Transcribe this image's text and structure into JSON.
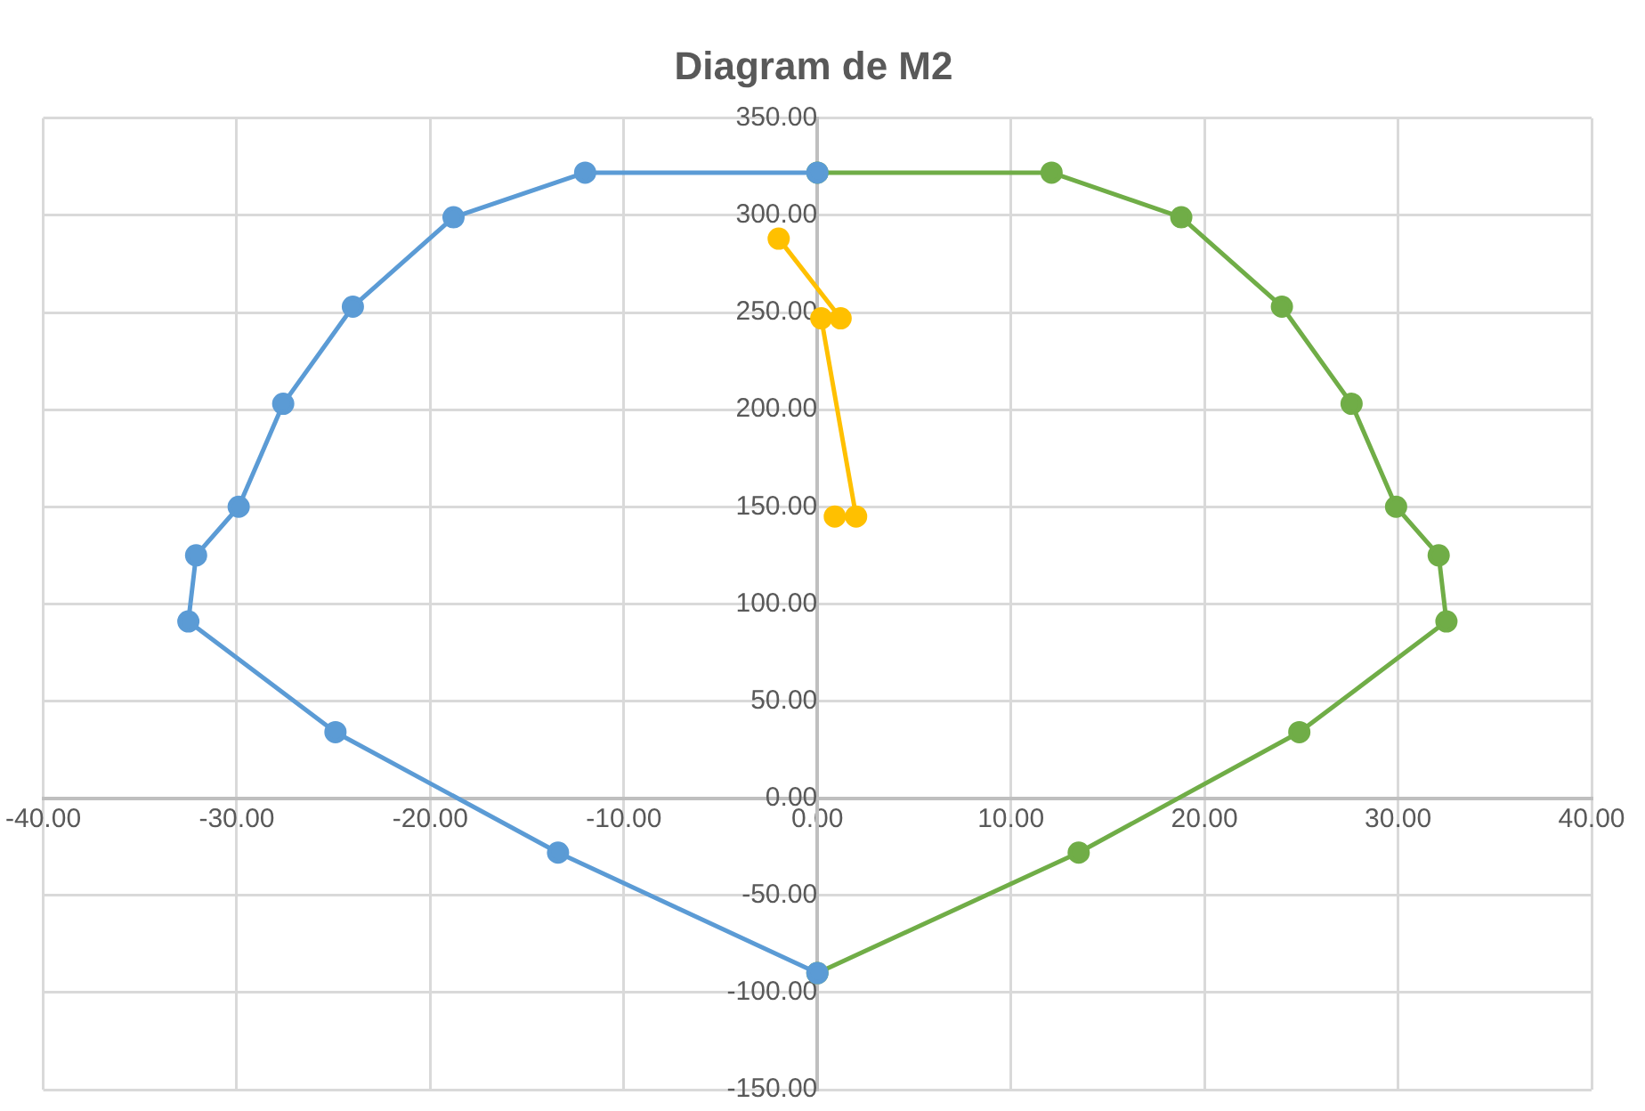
{
  "chart_data": {
    "type": "line",
    "title": "Diagram de M2",
    "xlim": [
      -40,
      40
    ],
    "xticks": [
      {
        "value": -40,
        "label": "-40.00"
      },
      {
        "value": -30,
        "label": "-30.00"
      },
      {
        "value": -20,
        "label": "-20.00"
      },
      {
        "value": -10,
        "label": "-10.00"
      },
      {
        "value": 0,
        "label": "0.00"
      },
      {
        "value": 10,
        "label": "10.00"
      },
      {
        "value": 20,
        "label": "20.00"
      },
      {
        "value": 30,
        "label": "30.00"
      },
      {
        "value": 40,
        "label": "40.00"
      }
    ],
    "ylim": [
      -150,
      350
    ],
    "yticks": [
      {
        "value": -150,
        "label": "-150.00"
      },
      {
        "value": -100,
        "label": "-100.00"
      },
      {
        "value": -50,
        "label": "-50.00"
      },
      {
        "value": 0,
        "label": "0.00"
      },
      {
        "value": 50,
        "label": "50.00"
      },
      {
        "value": 100,
        "label": "100.00"
      },
      {
        "value": 150,
        "label": "150.00"
      },
      {
        "value": 200,
        "label": "200.00"
      },
      {
        "value": 250,
        "label": "250.00"
      },
      {
        "value": 300,
        "label": "300.00"
      },
      {
        "value": 350,
        "label": "350.00"
      }
    ],
    "grid": true,
    "legend": false,
    "marker": "circle",
    "line_style": "solid",
    "series": [
      {
        "color": "#5b9bd5",
        "x": [
          0,
          -13.4,
          -24.9,
          -32.5,
          -32.1,
          -29.9,
          -27.6,
          -24,
          -18.8,
          -12,
          0
        ],
        "values": [
          -90,
          -28,
          34,
          91,
          125,
          150,
          203,
          253,
          299,
          322,
          322
        ]
      },
      {
        "color": "#70ad47",
        "x": [
          0,
          13.5,
          24.9,
          32.5,
          32.1,
          29.9,
          27.6,
          24,
          18.8,
          12.1,
          0
        ],
        "values": [
          -90,
          -28,
          34,
          91,
          125,
          150,
          203,
          253,
          299,
          322,
          322
        ]
      },
      {
        "color": "#ffc000",
        "x": [
          -2,
          1.2,
          0.2,
          2,
          0.9
        ],
        "values": [
          288,
          247,
          247,
          145,
          145
        ]
      }
    ]
  }
}
